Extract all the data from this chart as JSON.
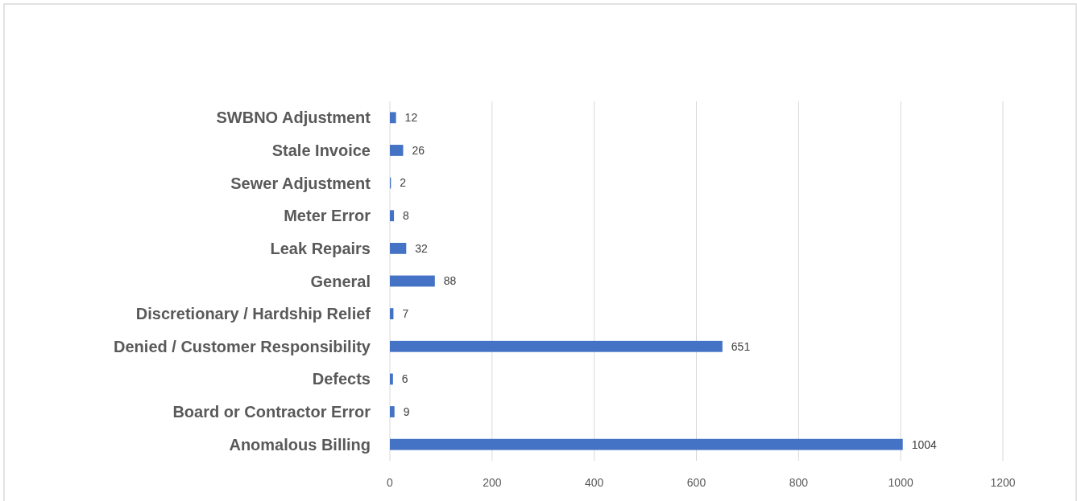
{
  "chart_data": {
    "type": "bar",
    "orientation": "horizontal",
    "categories": [
      "SWBNO Adjustment",
      "Stale Invoice",
      "Sewer Adjustment",
      "Meter Error",
      "Leak Repairs",
      "General",
      "Discretionary / Hardship Relief",
      "Denied / Customer Responsibility",
      "Defects",
      "Board or Contractor Error",
      "Anomalous Billing"
    ],
    "values": [
      12,
      26,
      2,
      8,
      32,
      88,
      7,
      651,
      6,
      9,
      1004
    ],
    "color": "#4472c4",
    "xlim": [
      0,
      1200
    ],
    "xticks": [
      0,
      200,
      400,
      600,
      800,
      1000,
      1200
    ],
    "grid": "x",
    "data_labels": true
  }
}
